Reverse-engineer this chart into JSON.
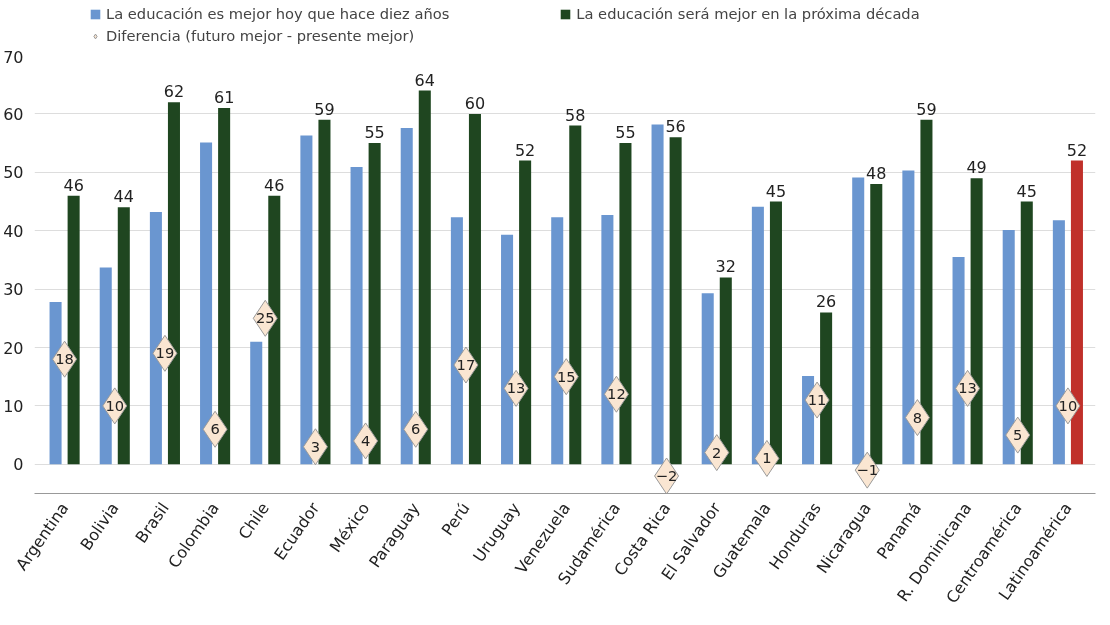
{
  "chart_data": {
    "type": "bar",
    "categories": [
      "Argentina",
      "Bolivia",
      "Brasil",
      "Colombia",
      "Chile",
      "Ecuador",
      "México",
      "Paraguay",
      "Perú",
      "Uruguay",
      "Venezuela",
      "Sudamérica",
      "Costa Rica",
      "El Salvador",
      "Guatemala",
      "Honduras",
      "Nicaragua",
      "Panamá",
      "R. Dominicana",
      "Centroamérica",
      "Latinoamérica"
    ],
    "series": [
      {
        "name": "La educación es mejor hoy que hace diez años",
        "color": "#6a96d0",
        "values": [
          27.8,
          33.7,
          43.2,
          55.1,
          21.0,
          56.3,
          50.9,
          57.6,
          42.3,
          39.3,
          42.3,
          42.7,
          58.2,
          29.3,
          44.1,
          15.1,
          49.1,
          50.3,
          35.5,
          40.1,
          41.8
        ]
      },
      {
        "name": "La educación será mejor en la próxima década",
        "color": "#1f4620",
        "colors": [
          "#1f4620",
          "#1f4620",
          "#1f4620",
          "#1f4620",
          "#1f4620",
          "#1f4620",
          "#1f4620",
          "#1f4620",
          "#1f4620",
          "#1f4620",
          "#1f4620",
          "#1f4620",
          "#1f4620",
          "#1f4620",
          "#1f4620",
          "#1f4620",
          "#1f4620",
          "#1f4620",
          "#1f4620",
          "#1f4620",
          "#c0302a"
        ],
        "values": [
          46,
          44,
          62,
          61,
          46,
          59,
          55,
          64,
          60,
          52,
          58,
          55,
          56,
          32,
          45,
          26,
          48,
          59,
          49,
          45,
          52
        ],
        "value_labels": [
          "46",
          "44",
          "62",
          "61",
          "46",
          "59",
          "55",
          "64",
          "60",
          "52",
          "58",
          "55",
          "56",
          "32",
          "45",
          "26",
          "48",
          "59",
          "49",
          "45",
          "52"
        ]
      },
      {
        "name": "Diferencia (futuro mejor - presente mejor)",
        "type": "scatter",
        "marker": "diamond",
        "color": "#fae6d2",
        "values": [
          18,
          10,
          19,
          6,
          25,
          3,
          4,
          6,
          17,
          13,
          15,
          12,
          -2,
          2,
          1,
          11,
          -1,
          8,
          13,
          5,
          10
        ],
        "value_labels": [
          "18",
          "10",
          "19",
          "6",
          "25",
          "3",
          "4",
          "6",
          "17",
          "13",
          "15",
          "12",
          "−2",
          "2",
          "1",
          "11",
          "−1",
          "8",
          "13",
          "5",
          "10"
        ]
      }
    ],
    "ylim": [
      -5,
      70
    ],
    "yticks": [
      0,
      10,
      20,
      30,
      40,
      50,
      60,
      70
    ],
    "grid": "y",
    "legend": "top left"
  }
}
